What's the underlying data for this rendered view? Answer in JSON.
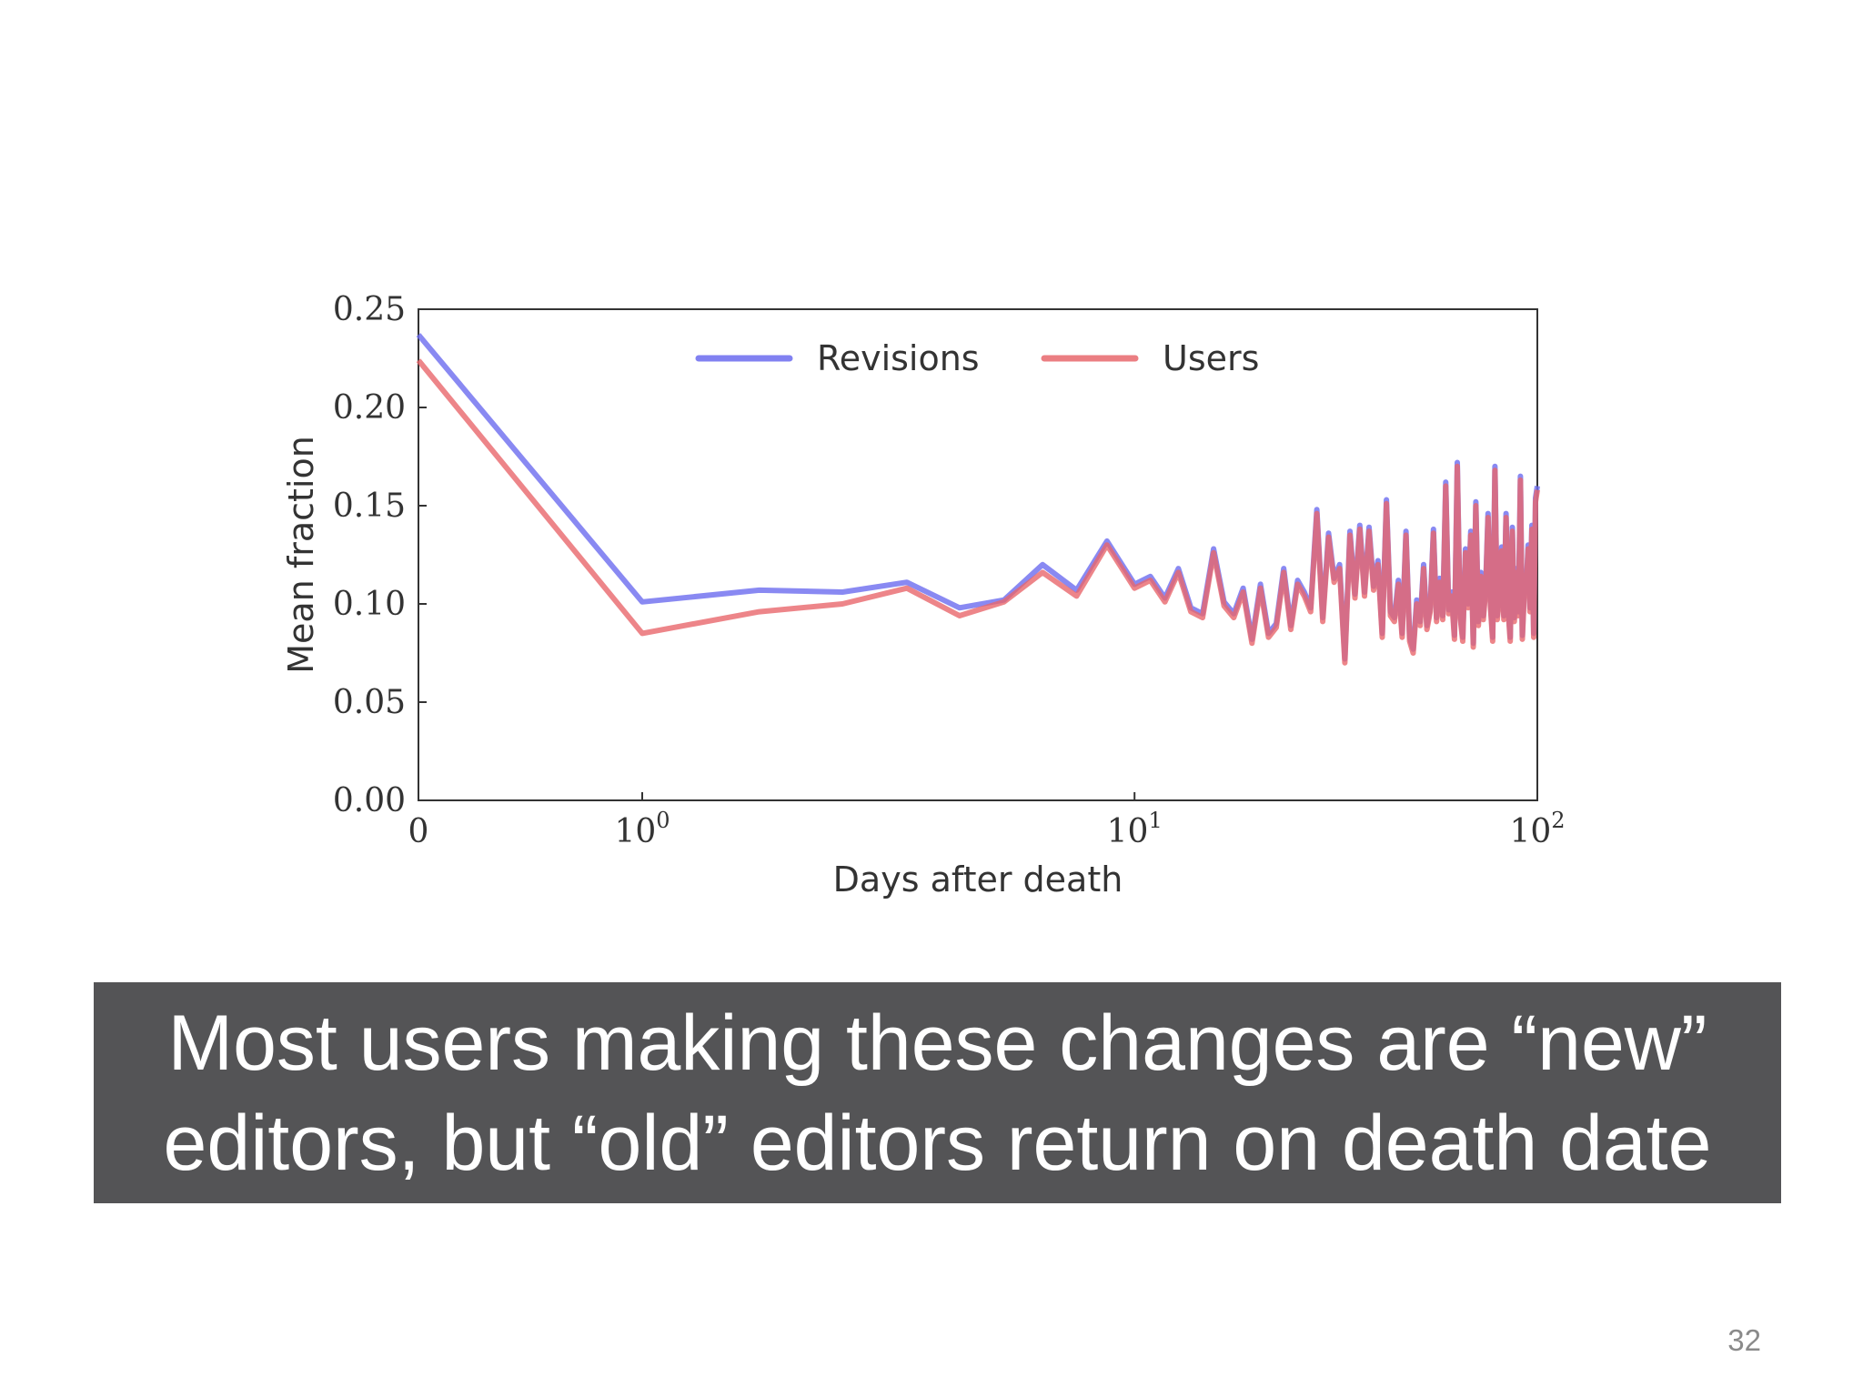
{
  "slide": {
    "caption_lines": [
      "Most users making these changes are “new”",
      "editors, but “old” editors return on death date"
    ],
    "page_number": "32"
  },
  "chart_data": {
    "type": "line",
    "title": "",
    "xlabel": "Days after death",
    "ylabel": "Mean fraction",
    "xscale": "symlog",
    "xlim": [
      0,
      100
    ],
    "ylim": [
      0,
      0.25
    ],
    "x_ticks": [
      {
        "value": 0,
        "base": "0",
        "exp": ""
      },
      {
        "value": 1,
        "base": "10",
        "exp": "0"
      },
      {
        "value": 10,
        "base": "10",
        "exp": "1"
      },
      {
        "value": 100,
        "base": "10",
        "exp": "2"
      }
    ],
    "y_ticks": [
      0.0,
      0.05,
      0.1,
      0.15,
      0.2,
      0.25
    ],
    "y_tick_labels": [
      "0.00",
      "0.05",
      "0.10",
      "0.15",
      "0.20",
      "0.25"
    ],
    "grid": false,
    "legend": {
      "position": "top-center",
      "orientation": "horizontal"
    },
    "series": [
      {
        "name": "Revisions",
        "color": "#6b6bef",
        "x": [
          0,
          1,
          2,
          3,
          4,
          5,
          6,
          7,
          8,
          9,
          10,
          11,
          12,
          13,
          14,
          15,
          16,
          17,
          18,
          19,
          20,
          21,
          22,
          23,
          24,
          25,
          26,
          27,
          28,
          29,
          30,
          31,
          32,
          33,
          34,
          35,
          36,
          37,
          38,
          39,
          40,
          41,
          42,
          43,
          44,
          45,
          46,
          47,
          48,
          49,
          50,
          51,
          52,
          53,
          54,
          55,
          56,
          57,
          58,
          59,
          60,
          61,
          62,
          63,
          64,
          65,
          66,
          67,
          68,
          69,
          70,
          71,
          72,
          73,
          74,
          75,
          76,
          77,
          78,
          79,
          80,
          81,
          82,
          83,
          84,
          85,
          86,
          87,
          88,
          89,
          90,
          91,
          92,
          93,
          94,
          95,
          96,
          97,
          98,
          99,
          100
        ],
        "y": [
          0.237,
          0.101,
          0.107,
          0.106,
          0.111,
          0.098,
          0.102,
          0.12,
          0.107,
          0.132,
          0.11,
          0.114,
          0.103,
          0.118,
          0.098,
          0.095,
          0.128,
          0.101,
          0.095,
          0.108,
          0.082,
          0.11,
          0.085,
          0.09,
          0.118,
          0.089,
          0.112,
          0.106,
          0.098,
          0.148,
          0.093,
          0.136,
          0.113,
          0.12,
          0.072,
          0.137,
          0.105,
          0.14,
          0.106,
          0.139,
          0.109,
          0.122,
          0.085,
          0.153,
          0.096,
          0.093,
          0.112,
          0.085,
          0.137,
          0.083,
          0.077,
          0.102,
          0.091,
          0.12,
          0.089,
          0.098,
          0.138,
          0.093,
          0.113,
          0.094,
          0.162,
          0.097,
          0.106,
          0.084,
          0.172,
          0.096,
          0.083,
          0.128,
          0.1,
          0.137,
          0.08,
          0.152,
          0.091,
          0.116,
          0.094,
          0.109,
          0.146,
          0.101,
          0.083,
          0.17,
          0.094,
          0.105,
          0.129,
          0.094,
          0.146,
          0.099,
          0.083,
          0.139,
          0.093,
          0.118,
          0.096,
          0.165,
          0.084,
          0.108,
          0.109,
          0.13,
          0.098,
          0.14,
          0.085,
          0.154,
          0.16
        ]
      },
      {
        "name": "Users",
        "color": "#e8676c",
        "x": [
          0,
          1,
          2,
          3,
          4,
          5,
          6,
          7,
          8,
          9,
          10,
          11,
          12,
          13,
          14,
          15,
          16,
          17,
          18,
          19,
          20,
          21,
          22,
          23,
          24,
          25,
          26,
          27,
          28,
          29,
          30,
          31,
          32,
          33,
          34,
          35,
          36,
          37,
          38,
          39,
          40,
          41,
          42,
          43,
          44,
          45,
          46,
          47,
          48,
          49,
          50,
          51,
          52,
          53,
          54,
          55,
          56,
          57,
          58,
          59,
          60,
          61,
          62,
          63,
          64,
          65,
          66,
          67,
          68,
          69,
          70,
          71,
          72,
          73,
          74,
          75,
          76,
          77,
          78,
          79,
          80,
          81,
          82,
          83,
          84,
          85,
          86,
          87,
          88,
          89,
          90,
          91,
          92,
          93,
          94,
          95,
          96,
          97,
          98,
          99,
          100
        ],
        "y": [
          0.224,
          0.085,
          0.096,
          0.1,
          0.108,
          0.094,
          0.101,
          0.116,
          0.104,
          0.13,
          0.108,
          0.112,
          0.101,
          0.116,
          0.096,
          0.093,
          0.126,
          0.099,
          0.093,
          0.106,
          0.08,
          0.108,
          0.083,
          0.088,
          0.116,
          0.087,
          0.11,
          0.104,
          0.096,
          0.146,
          0.091,
          0.134,
          0.111,
          0.118,
          0.07,
          0.135,
          0.103,
          0.138,
          0.104,
          0.137,
          0.107,
          0.12,
          0.083,
          0.151,
          0.094,
          0.091,
          0.11,
          0.083,
          0.135,
          0.081,
          0.075,
          0.1,
          0.089,
          0.118,
          0.087,
          0.096,
          0.136,
          0.091,
          0.111,
          0.092,
          0.16,
          0.095,
          0.104,
          0.082,
          0.17,
          0.094,
          0.081,
          0.126,
          0.098,
          0.135,
          0.078,
          0.15,
          0.089,
          0.114,
          0.092,
          0.107,
          0.144,
          0.099,
          0.081,
          0.168,
          0.092,
          0.103,
          0.127,
          0.092,
          0.144,
          0.097,
          0.081,
          0.137,
          0.091,
          0.116,
          0.094,
          0.163,
          0.082,
          0.106,
          0.107,
          0.128,
          0.096,
          0.138,
          0.083,
          0.152,
          0.158
        ]
      }
    ]
  }
}
